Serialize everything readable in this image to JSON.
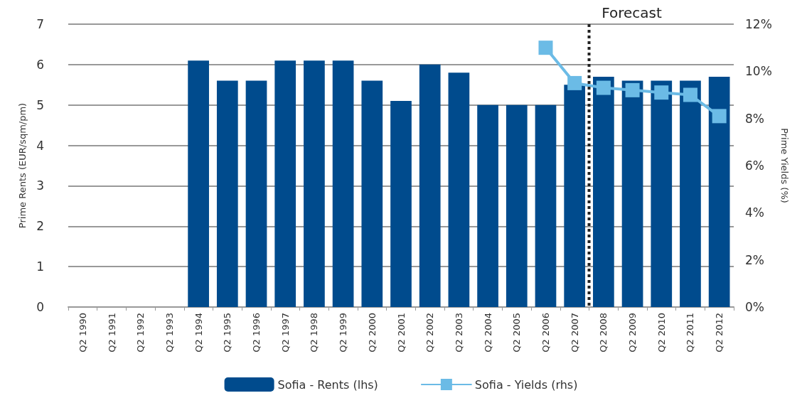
{
  "chart_data": {
    "type": "bar",
    "ylabel": "Prime Rents (EUR/sqm/pm)",
    "y2label": "Prime Yields (%)",
    "categories": [
      "Q2 1990",
      "Q2 1991",
      "Q2 1992",
      "Q2 1993",
      "Q2 1994",
      "Q2 1995",
      "Q2 1996",
      "Q2 1997",
      "Q2 1998",
      "Q2 1999",
      "Q2 2000",
      "Q2 2001",
      "Q2 2002",
      "Q2 2003",
      "Q2 2004",
      "Q2 2005",
      "Q2 2006",
      "Q2 2007",
      "Q2 2008",
      "Q2 2009",
      "Q2 2010",
      "Q2 2011",
      "Q2 2012"
    ],
    "series": [
      {
        "name": "Sofia - Rents (lhs)",
        "color": "#004b8d",
        "values": [
          null,
          null,
          null,
          null,
          6.1,
          5.6,
          5.6,
          6.1,
          6.1,
          6.1,
          5.6,
          5.1,
          6.0,
          5.8,
          5.0,
          5.0,
          5.0,
          5.5,
          5.7,
          5.6,
          5.6,
          5.6,
          5.7
        ]
      },
      {
        "name": "Sofia - Yields (rhs)",
        "type": "line",
        "axis": "y2",
        "color": "#6bbbe6",
        "marker": "square",
        "values": [
          null,
          null,
          null,
          null,
          null,
          null,
          null,
          null,
          null,
          null,
          null,
          null,
          null,
          null,
          null,
          null,
          11.0,
          9.5,
          9.3,
          9.2,
          9.1,
          9.0,
          8.1
        ]
      }
    ],
    "ylim": [
      0,
      7
    ],
    "yticks": [
      0,
      1,
      2,
      3,
      4,
      5,
      6,
      7
    ],
    "y2lim": [
      0,
      12
    ],
    "y2ticks": [
      {
        "value": 0,
        "label": "0%"
      },
      {
        "value": 2,
        "label": "2%"
      },
      {
        "value": 4,
        "label": "4%"
      },
      {
        "value": 6,
        "label": "6%"
      },
      {
        "value": 8,
        "label": "8%"
      },
      {
        "value": 10,
        "label": "10%"
      },
      {
        "value": 12,
        "label": "12%"
      }
    ],
    "ref_lines": [
      {
        "axis": "x",
        "value": "Q2 2008",
        "label": "Forecast",
        "color": "#222222",
        "line_style": "dotted"
      }
    ],
    "grid": "y",
    "legend": "bottom"
  }
}
